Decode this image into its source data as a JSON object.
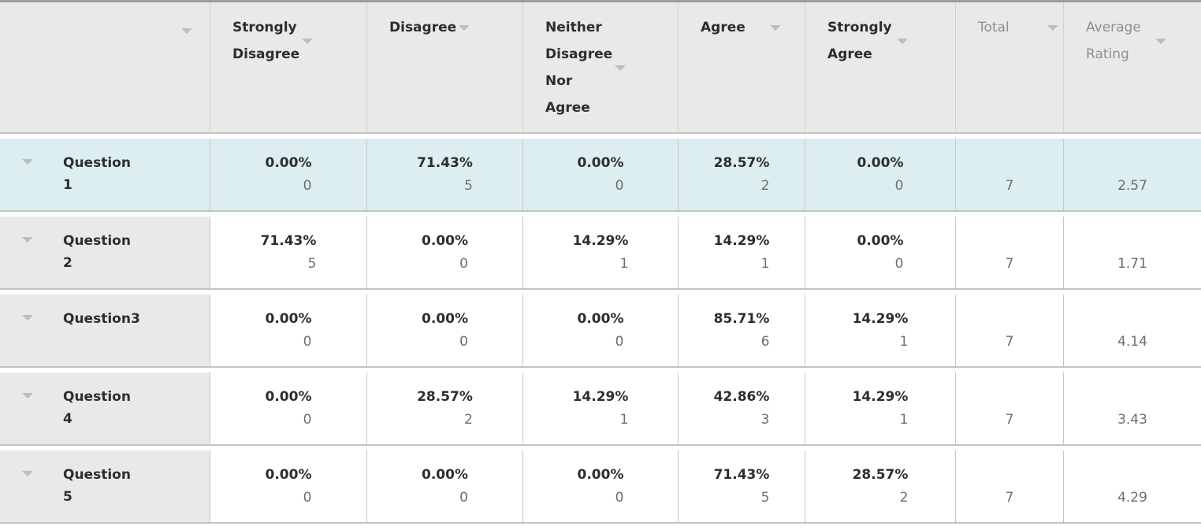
{
  "table": {
    "columns": [
      {
        "label": ""
      },
      {
        "label": "Strongly Disagree"
      },
      {
        "label": "Disagree"
      },
      {
        "label": "Neither Disagree Nor Agree"
      },
      {
        "label": "Agree"
      },
      {
        "label": "Strongly Agree"
      },
      {
        "label": "Total"
      },
      {
        "label": "Average Rating"
      }
    ],
    "rows": [
      {
        "label": "Question 1",
        "answers": [
          {
            "pct": "0.00%",
            "count": "0"
          },
          {
            "pct": "71.43%",
            "count": "5"
          },
          {
            "pct": "0.00%",
            "count": "0"
          },
          {
            "pct": "28.57%",
            "count": "2"
          },
          {
            "pct": "0.00%",
            "count": "0"
          }
        ],
        "total": "7",
        "average": "2.57"
      },
      {
        "label": "Question 2",
        "answers": [
          {
            "pct": "71.43%",
            "count": "5"
          },
          {
            "pct": "0.00%",
            "count": "0"
          },
          {
            "pct": "14.29%",
            "count": "1"
          },
          {
            "pct": "14.29%",
            "count": "1"
          },
          {
            "pct": "0.00%",
            "count": "0"
          }
        ],
        "total": "7",
        "average": "1.71"
      },
      {
        "label": "Question3",
        "answers": [
          {
            "pct": "0.00%",
            "count": "0"
          },
          {
            "pct": "0.00%",
            "count": "0"
          },
          {
            "pct": "0.00%",
            "count": "0"
          },
          {
            "pct": "85.71%",
            "count": "6"
          },
          {
            "pct": "14.29%",
            "count": "1"
          }
        ],
        "total": "7",
        "average": "4.14"
      },
      {
        "label": "Question 4",
        "answers": [
          {
            "pct": "0.00%",
            "count": "0"
          },
          {
            "pct": "28.57%",
            "count": "2"
          },
          {
            "pct": "14.29%",
            "count": "1"
          },
          {
            "pct": "42.86%",
            "count": "3"
          },
          {
            "pct": "14.29%",
            "count": "1"
          }
        ],
        "total": "7",
        "average": "3.43"
      },
      {
        "label": "Question 5",
        "answers": [
          {
            "pct": "0.00%",
            "count": "0"
          },
          {
            "pct": "0.00%",
            "count": "0"
          },
          {
            "pct": "0.00%",
            "count": "0"
          },
          {
            "pct": "71.43%",
            "count": "5"
          },
          {
            "pct": "28.57%",
            "count": "2"
          }
        ],
        "total": "7",
        "average": "4.29"
      }
    ]
  },
  "colors": {
    "header_bg": "#e9e9e9",
    "highlight_row_bg": "#ddeef0",
    "question_cell_bg": "#e9e9e9",
    "data_cell_bg": "#ffffff",
    "border": "#c3c3c3",
    "bold_text": "#2d2d2d",
    "muted_text": "#6e6e6e",
    "muted_header_text": "#8f8f8f",
    "sort_arrow": "#bdbdbd"
  },
  "icons": {
    "sort_arrow": "triangle-down",
    "row_expand": "triangle-down"
  }
}
